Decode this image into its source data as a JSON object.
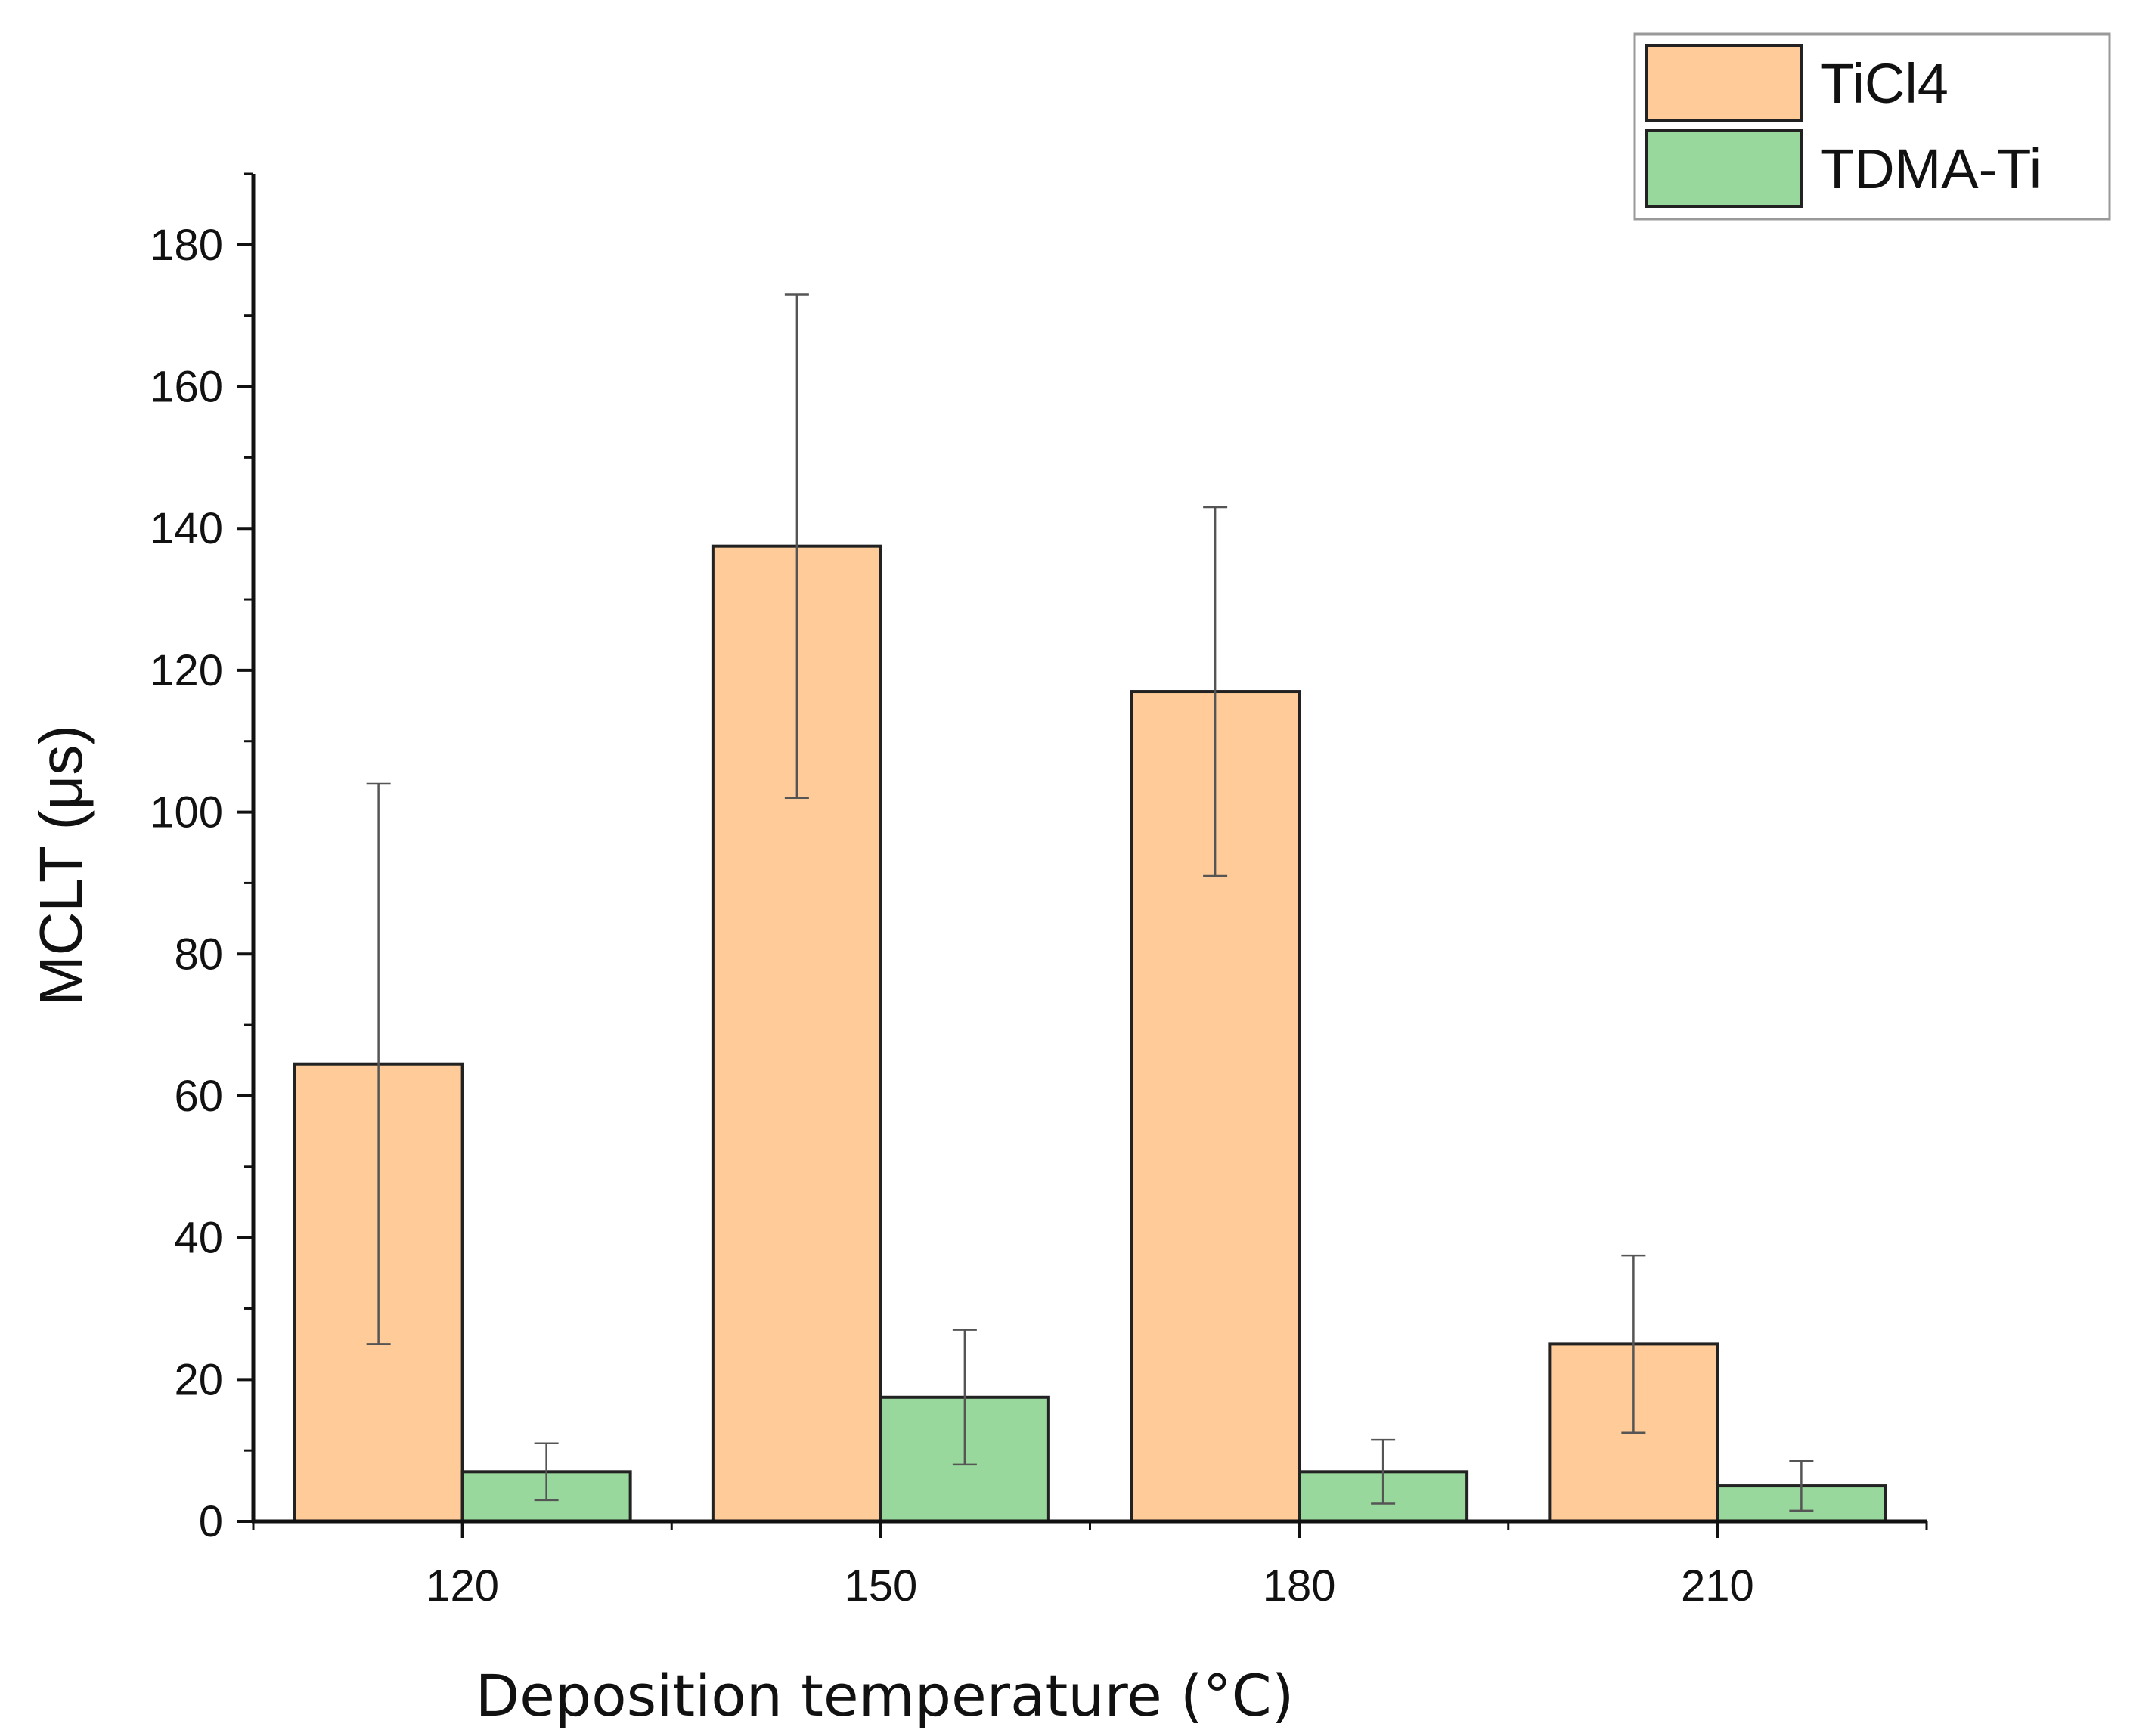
{
  "chart_data": {
    "type": "bar",
    "title": "",
    "xlabel": "Deposition temperature (°C)",
    "ylabel": "MCLT (μs)",
    "categories": [
      "120",
      "150",
      "180",
      "210"
    ],
    "ylim": [
      0,
      190
    ],
    "yticks": [
      0,
      20,
      40,
      60,
      80,
      100,
      120,
      140,
      160,
      180
    ],
    "ytick_labels": [
      "0",
      "20",
      "40",
      "60",
      "80",
      "100",
      "120",
      "140",
      "160",
      "180"
    ],
    "grid": false,
    "legend_position": "top-right",
    "series": [
      {
        "name": "TiCl4",
        "color": "#FFCC99",
        "values": [
          64.5,
          137.5,
          117,
          25
        ],
        "error": [
          39.5,
          35.5,
          26,
          12.5
        ]
      },
      {
        "name": "TDMA-Ti",
        "color": "#99D89C",
        "values": [
          7,
          17.5,
          7,
          5
        ],
        "error": [
          4,
          9.5,
          4.5,
          3.5
        ]
      }
    ]
  }
}
